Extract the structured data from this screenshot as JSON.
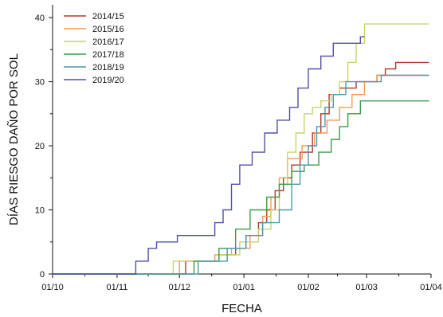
{
  "chart_data": {
    "type": "line",
    "step": true,
    "xlabel": "FECHA",
    "ylabel": "DÍAS RIESGO DAÑO POR SOL",
    "xlim": [
      "10-01",
      "04-01"
    ],
    "ylim": [
      0,
      42
    ],
    "x_ticks": [
      "01/10",
      "01/11",
      "01/12",
      "01/01",
      "01/02",
      "01/03",
      "01/04"
    ],
    "y_ticks": [
      0,
      10,
      20,
      30,
      40
    ],
    "grid": false,
    "legend_position": "top-left",
    "series": [
      {
        "name": "2014/15",
        "color": "#b03a2e",
        "points": [
          [
            "10-01",
            0
          ],
          [
            "12-04",
            0
          ],
          [
            "12-04",
            2
          ],
          [
            "12-20",
            2
          ],
          [
            "12-20",
            3
          ],
          [
            "12-28",
            3
          ],
          [
            "12-28",
            4
          ],
          [
            "01-02",
            4
          ],
          [
            "01-02",
            6
          ],
          [
            "01-08",
            6
          ],
          [
            "01-08",
            8
          ],
          [
            "01-12",
            8
          ],
          [
            "01-12",
            10
          ],
          [
            "01-16",
            10
          ],
          [
            "01-16",
            13
          ],
          [
            "01-20",
            13
          ],
          [
            "01-20",
            15
          ],
          [
            "01-24",
            15
          ],
          [
            "01-24",
            17
          ],
          [
            "01-28",
            17
          ],
          [
            "01-28",
            19
          ],
          [
            "02-03",
            19
          ],
          [
            "02-03",
            22
          ],
          [
            "02-07",
            22
          ],
          [
            "02-07",
            25
          ],
          [
            "02-11",
            25
          ],
          [
            "02-11",
            28
          ],
          [
            "02-16",
            28
          ],
          [
            "02-16",
            29
          ],
          [
            "02-24",
            29
          ],
          [
            "02-24",
            30
          ],
          [
            "03-06",
            30
          ],
          [
            "03-06",
            31
          ],
          [
            "03-10",
            31
          ],
          [
            "03-10",
            32
          ],
          [
            "03-15",
            32
          ],
          [
            "03-15",
            33
          ],
          [
            "03-31",
            33
          ]
        ]
      },
      {
        "name": "2015/16",
        "color": "#f59b57",
        "points": [
          [
            "10-01",
            0
          ],
          [
            "12-01",
            0
          ],
          [
            "12-01",
            2
          ],
          [
            "12-18",
            2
          ],
          [
            "12-18",
            3
          ],
          [
            "12-26",
            3
          ],
          [
            "12-26",
            4
          ],
          [
            "01-04",
            4
          ],
          [
            "01-04",
            6
          ],
          [
            "01-10",
            6
          ],
          [
            "01-10",
            9
          ],
          [
            "01-14",
            9
          ],
          [
            "01-14",
            12
          ],
          [
            "01-18",
            12
          ],
          [
            "01-18",
            15
          ],
          [
            "01-22",
            15
          ],
          [
            "01-22",
            18
          ],
          [
            "01-29",
            18
          ],
          [
            "01-29",
            20
          ],
          [
            "02-04",
            20
          ],
          [
            "02-04",
            22
          ],
          [
            "02-10",
            22
          ],
          [
            "02-10",
            24
          ],
          [
            "02-16",
            24
          ],
          [
            "02-16",
            26
          ],
          [
            "02-22",
            26
          ],
          [
            "02-22",
            28
          ],
          [
            "02-28",
            28
          ],
          [
            "02-28",
            30
          ],
          [
            "03-06",
            30
          ],
          [
            "03-06",
            31
          ],
          [
            "03-31",
            31
          ]
        ]
      },
      {
        "name": "2016/17",
        "color": "#c9d46b",
        "points": [
          [
            "10-01",
            0
          ],
          [
            "11-28",
            0
          ],
          [
            "11-28",
            2
          ],
          [
            "12-20",
            2
          ],
          [
            "12-20",
            3
          ],
          [
            "12-30",
            3
          ],
          [
            "12-30",
            5
          ],
          [
            "01-08",
            5
          ],
          [
            "01-08",
            7
          ],
          [
            "01-14",
            7
          ],
          [
            "01-14",
            10
          ],
          [
            "01-18",
            10
          ],
          [
            "01-18",
            14
          ],
          [
            "01-22",
            14
          ],
          [
            "01-22",
            19
          ],
          [
            "01-26",
            19
          ],
          [
            "01-26",
            22
          ],
          [
            "01-30",
            22
          ],
          [
            "01-30",
            25
          ],
          [
            "02-03",
            25
          ],
          [
            "02-03",
            26
          ],
          [
            "02-07",
            26
          ],
          [
            "02-07",
            27
          ],
          [
            "02-12",
            27
          ],
          [
            "02-12",
            28
          ],
          [
            "02-16",
            28
          ],
          [
            "02-16",
            30
          ],
          [
            "02-20",
            30
          ],
          [
            "02-20",
            33
          ],
          [
            "02-24",
            33
          ],
          [
            "02-24",
            36
          ],
          [
            "02-28",
            36
          ],
          [
            "02-28",
            39
          ],
          [
            "03-31",
            39
          ]
        ]
      },
      {
        "name": "2017/18",
        "color": "#3e9b4a",
        "points": [
          [
            "10-01",
            0
          ],
          [
            "12-08",
            0
          ],
          [
            "12-08",
            2
          ],
          [
            "12-20",
            2
          ],
          [
            "12-20",
            4
          ],
          [
            "12-28",
            4
          ],
          [
            "12-28",
            7
          ],
          [
            "01-04",
            7
          ],
          [
            "01-04",
            10
          ],
          [
            "01-12",
            10
          ],
          [
            "01-12",
            12
          ],
          [
            "01-18",
            12
          ],
          [
            "01-18",
            14
          ],
          [
            "01-24",
            14
          ],
          [
            "01-24",
            16
          ],
          [
            "01-30",
            16
          ],
          [
            "01-30",
            17
          ],
          [
            "02-06",
            17
          ],
          [
            "02-06",
            19
          ],
          [
            "02-12",
            19
          ],
          [
            "02-12",
            21
          ],
          [
            "02-16",
            21
          ],
          [
            "02-16",
            23
          ],
          [
            "02-20",
            23
          ],
          [
            "02-20",
            25
          ],
          [
            "02-26",
            25
          ],
          [
            "02-26",
            27
          ],
          [
            "03-31",
            27
          ]
        ]
      },
      {
        "name": "2018/19",
        "color": "#4a9aa8",
        "points": [
          [
            "10-01",
            0
          ],
          [
            "12-10",
            0
          ],
          [
            "12-10",
            2
          ],
          [
            "12-24",
            2
          ],
          [
            "12-24",
            4
          ],
          [
            "01-02",
            4
          ],
          [
            "01-02",
            6
          ],
          [
            "01-10",
            6
          ],
          [
            "01-10",
            8
          ],
          [
            "01-18",
            8
          ],
          [
            "01-18",
            10
          ],
          [
            "01-24",
            10
          ],
          [
            "01-24",
            14
          ],
          [
            "01-28",
            14
          ],
          [
            "01-28",
            17
          ],
          [
            "02-01",
            17
          ],
          [
            "02-01",
            20
          ],
          [
            "02-05",
            20
          ],
          [
            "02-05",
            23
          ],
          [
            "02-09",
            23
          ],
          [
            "02-09",
            26
          ],
          [
            "02-13",
            26
          ],
          [
            "02-13",
            28
          ],
          [
            "02-19",
            28
          ],
          [
            "02-19",
            30
          ],
          [
            "03-08",
            30
          ],
          [
            "03-08",
            31
          ],
          [
            "03-31",
            31
          ]
        ]
      },
      {
        "name": "2019/20",
        "color": "#5050a8",
        "points": [
          [
            "10-01",
            0
          ],
          [
            "11-10",
            0
          ],
          [
            "11-10",
            2
          ],
          [
            "11-16",
            2
          ],
          [
            "11-16",
            4
          ],
          [
            "11-20",
            4
          ],
          [
            "11-20",
            5
          ],
          [
            "11-30",
            5
          ],
          [
            "11-30",
            6
          ],
          [
            "12-18",
            6
          ],
          [
            "12-18",
            8
          ],
          [
            "12-22",
            8
          ],
          [
            "12-22",
            10
          ],
          [
            "12-26",
            10
          ],
          [
            "12-26",
            14
          ],
          [
            "12-30",
            14
          ],
          [
            "12-30",
            17
          ],
          [
            "01-05",
            17
          ],
          [
            "01-05",
            19
          ],
          [
            "01-11",
            19
          ],
          [
            "01-11",
            22
          ],
          [
            "01-17",
            22
          ],
          [
            "01-17",
            24
          ],
          [
            "01-23",
            24
          ],
          [
            "01-23",
            26
          ],
          [
            "01-27",
            26
          ],
          [
            "01-27",
            29
          ],
          [
            "02-01",
            29
          ],
          [
            "02-01",
            32
          ],
          [
            "02-07",
            32
          ],
          [
            "02-07",
            34
          ],
          [
            "02-13",
            34
          ],
          [
            "02-13",
            36
          ],
          [
            "02-26",
            36
          ],
          [
            "02-26",
            37
          ],
          [
            "02-28",
            37
          ]
        ]
      }
    ]
  }
}
